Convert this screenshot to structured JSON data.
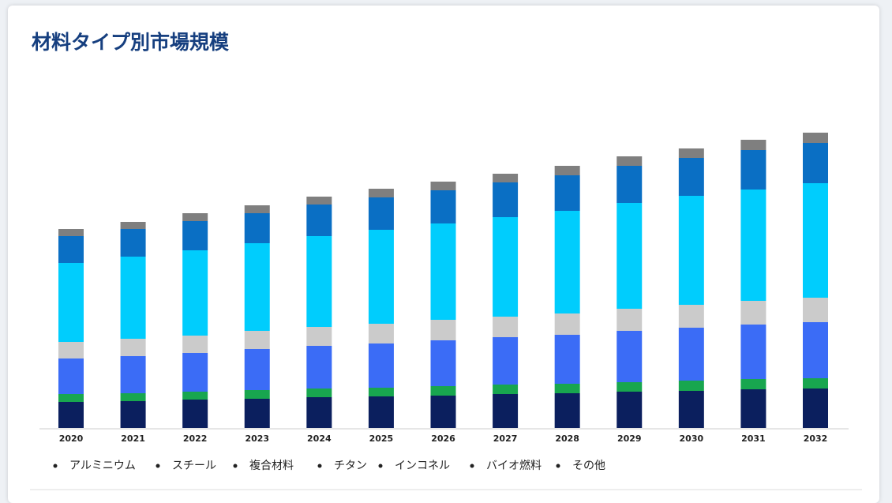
{
  "chart_data": {
    "type": "stacked-bar",
    "title": "材料タイプ別市場規模",
    "categories": [
      "2020",
      "2021",
      "2022",
      "2023",
      "2024",
      "2025",
      "2026",
      "2027",
      "2028",
      "2029",
      "2030",
      "2031",
      "2032"
    ],
    "series": [
      {
        "name": "アルミニウム",
        "color": "#0b1f5e",
        "values": [
          33,
          34,
          36,
          37,
          39,
          40,
          41,
          43,
          44,
          46,
          47,
          49,
          50
        ]
      },
      {
        "name": "スチール",
        "color": "#18a64f",
        "values": [
          10,
          10,
          10,
          11,
          11,
          11,
          12,
          12,
          12,
          12,
          13,
          13,
          13
        ]
      },
      {
        "name": "複合材料",
        "color": "#3b6cf6",
        "values": [
          45,
          47,
          49,
          52,
          54,
          56,
          58,
          60,
          62,
          65,
          67,
          69,
          71
        ]
      },
      {
        "name": "チタン",
        "color": "#cbcbcb",
        "values": [
          21,
          22,
          22,
          23,
          24,
          25,
          26,
          26,
          27,
          28,
          29,
          30,
          31
        ]
      },
      {
        "name": "インコネル",
        "color": "#00cdfd",
        "values": [
          100,
          104,
          108,
          111,
          115,
          119,
          122,
          126,
          130,
          134,
          138,
          141,
          145
        ]
      },
      {
        "name": "バイオ燃料",
        "color": "#0a6fc4",
        "values": [
          34,
          35,
          37,
          38,
          40,
          41,
          42,
          44,
          45,
          47,
          48,
          50,
          51
        ]
      },
      {
        "name": "その他",
        "color": "#7f7f7f",
        "values": [
          9,
          9,
          10,
          10,
          10,
          11,
          11,
          11,
          12,
          12,
          12,
          13,
          13
        ]
      }
    ],
    "ylim": [
      0,
      400
    ]
  }
}
